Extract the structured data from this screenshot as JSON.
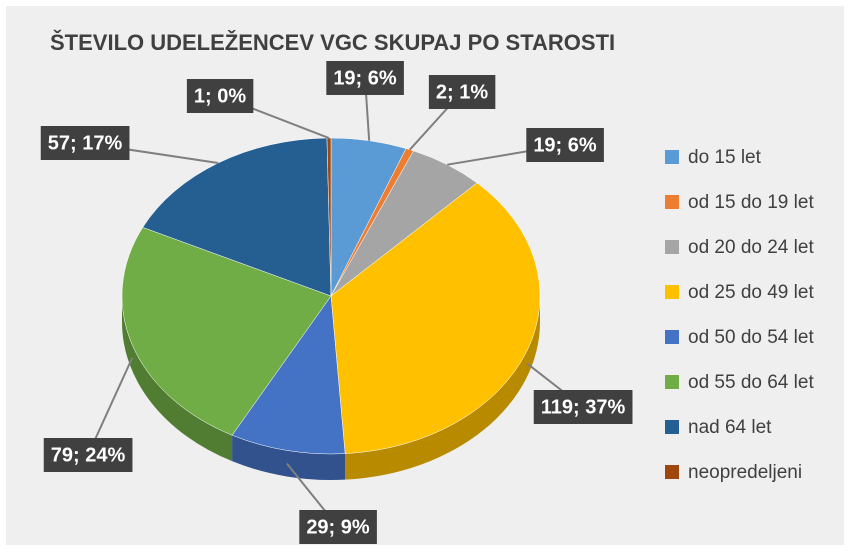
{
  "chart_data": {
    "type": "pie",
    "title": "ŠTEVILO UDELEŽENCEV VGC SKUPAJ PO STAROSTI",
    "categories": [
      "do 15 let",
      "od 15 do 19 let",
      "od 20 do 24 let",
      "od 25 do 49 let",
      "od 50 do 54 let",
      "od 55 do 64 let",
      "nad 64 let",
      "neopredeljeni"
    ],
    "values": [
      19,
      2,
      19,
      119,
      29,
      79,
      57,
      1
    ],
    "value_labels": [
      "19; 6%",
      "2; 1%",
      "19; 6%",
      "119; 37%",
      "29; 9%",
      "79; 24%",
      "57; 17%",
      "1; 0%"
    ],
    "colors": [
      "#5b9bd5",
      "#ed7d31",
      "#a5a5a5",
      "#ffc000",
      "#4472c4",
      "#70ad47",
      "#255e91",
      "#9e480e"
    ],
    "legend": "right"
  }
}
